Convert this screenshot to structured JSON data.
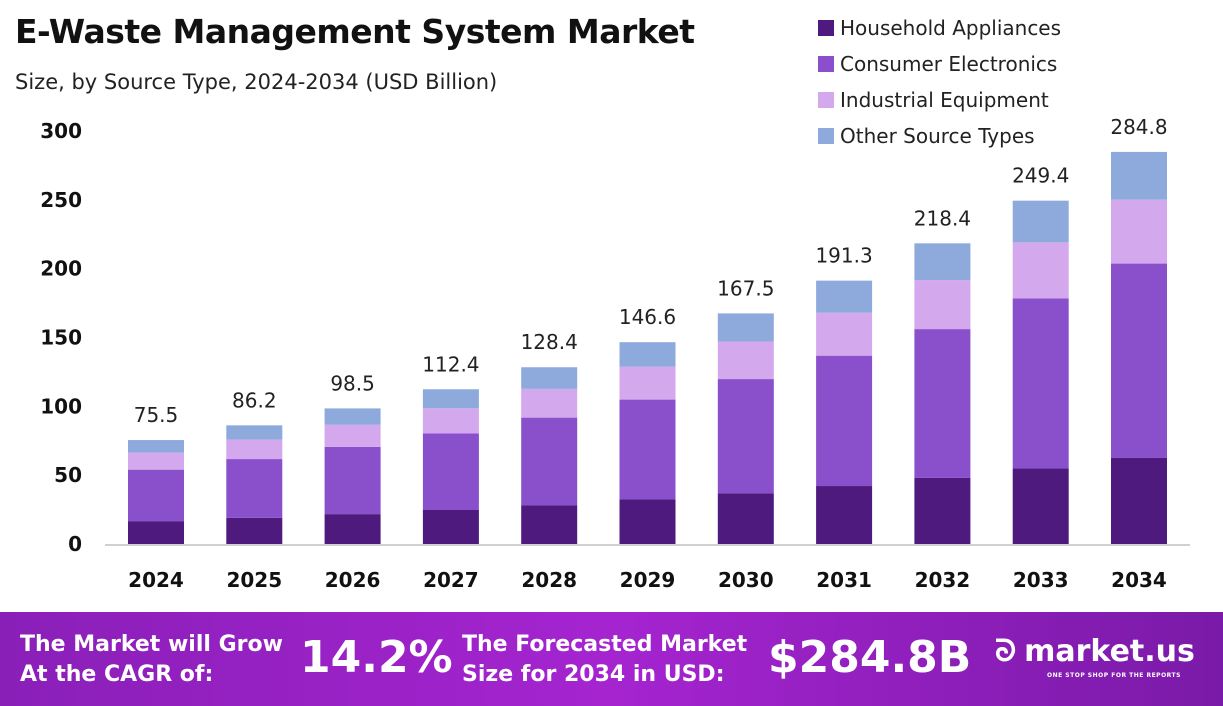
{
  "chart_data": {
    "type": "bar",
    "stacked": true,
    "title": "E-Waste Management System Market",
    "subtitle": "Size, by Source Type, 2024-2034 (USD Billion)",
    "categories": [
      "2024",
      "2025",
      "2026",
      "2027",
      "2028",
      "2029",
      "2030",
      "2031",
      "2032",
      "2033",
      "2034"
    ],
    "series": [
      {
        "name": "Household Appliances",
        "color": "#4e1a7e",
        "values": [
          16.6,
          19.0,
          21.7,
          24.7,
          28.2,
          32.3,
          36.9,
          42.1,
          48.0,
          54.9,
          62.7
        ]
      },
      {
        "name": "Consumer Electronics",
        "color": "#8a4fcb",
        "values": [
          37.4,
          42.7,
          48.8,
          55.6,
          63.6,
          72.6,
          82.9,
          94.7,
          108.1,
          123.5,
          141.0
        ]
      },
      {
        "name": "Industrial Equipment",
        "color": "#d4a8ec",
        "values": [
          12.3,
          14.1,
          16.1,
          18.3,
          20.9,
          23.9,
          27.3,
          31.2,
          35.6,
          40.7,
          46.4
        ]
      },
      {
        "name": "Other Source Types",
        "color": "#8eaadc",
        "values": [
          9.2,
          10.4,
          11.9,
          13.8,
          15.7,
          17.8,
          20.4,
          23.3,
          26.7,
          30.3,
          34.7
        ]
      }
    ],
    "totals": [
      "75.5",
      "86.2",
      "98.5",
      "112.4",
      "128.4",
      "146.6",
      "167.5",
      "191.3",
      "218.4",
      "249.4",
      "284.8"
    ],
    "yticks": [
      "0",
      "50",
      "100",
      "150",
      "200",
      "250",
      "300"
    ],
    "ylim": [
      0,
      300
    ],
    "grid": false,
    "legend": "top-right"
  },
  "banner": {
    "cagr_text_1": "The Market will Grow",
    "cagr_text_2": "At the CAGR of:",
    "cagr_value": "14.2%",
    "forecast_text_1": "The Forecasted Market",
    "forecast_text_2": "Size for 2034 in USD:",
    "forecast_value": "$284.8B",
    "logo_name": "market.us",
    "logo_tagline": "ONE STOP SHOP FOR THE REPORTS"
  }
}
